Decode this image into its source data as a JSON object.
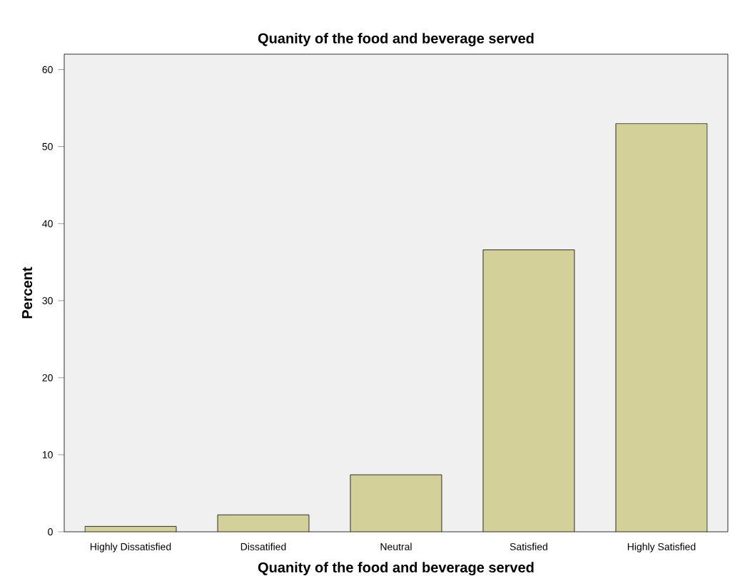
{
  "chart_data": {
    "type": "bar",
    "title": "Quanity of the food and beverage served",
    "xlabel": "Quanity of the food and beverage served",
    "ylabel": "Percent",
    "categories": [
      "Highly Dissatisfied",
      "Dissatified",
      "Neutral",
      "Satisfied",
      "Highly Satisfied"
    ],
    "values": [
      0.7,
      2.2,
      7.4,
      36.6,
      53.0
    ],
    "color": "#d4d09a",
    "ylim": [
      0,
      62
    ],
    "yticks": [
      0,
      10,
      20,
      30,
      40,
      50,
      60
    ],
    "grid": false
  }
}
